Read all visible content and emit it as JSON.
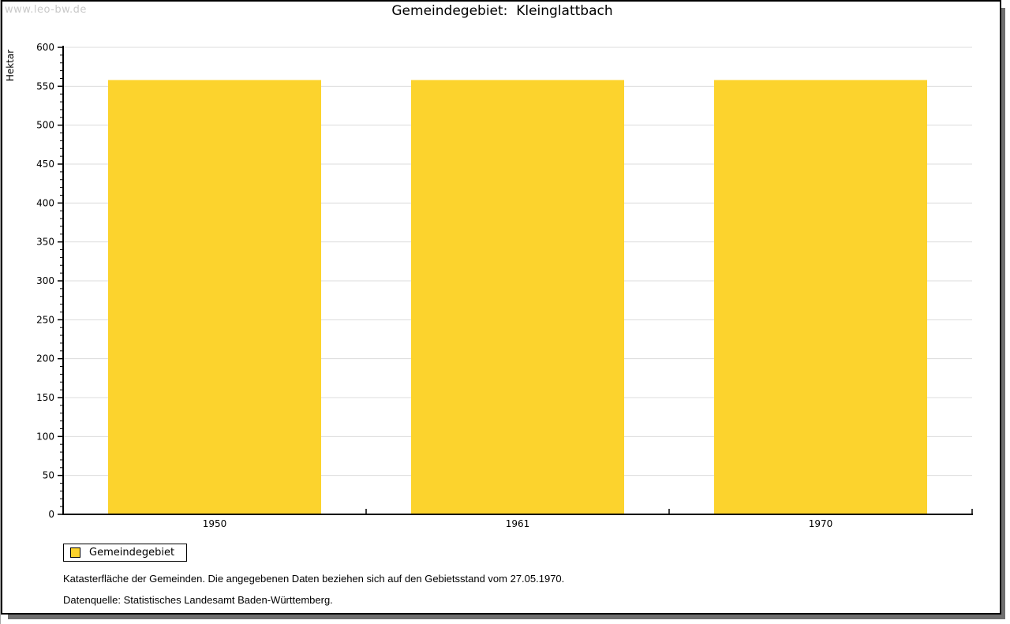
{
  "watermark": "www.leo-bw.de",
  "header": {
    "title": "Gemeindegebiet:  Kleinglattbach"
  },
  "chart_data": {
    "type": "bar",
    "title": "Gemeindegebiet: Kleinglattbach",
    "categories": [
      "1950",
      "1961",
      "1970"
    ],
    "series": [
      {
        "name": "Gemeindegebiet",
        "values": [
          558,
          558,
          558
        ],
        "color": "#FCD32D"
      }
    ],
    "xlabel": "",
    "ylabel": "Hektar",
    "ylim": [
      0,
      600
    ],
    "ytick_major": 50,
    "ytick_minor": 10,
    "grid": true,
    "legend_position": "bottom-left"
  },
  "legend": {
    "items": [
      {
        "label": "Gemeindegebiet",
        "color": "#FCD32D"
      }
    ]
  },
  "footnotes": {
    "line1": "Katasterfläche der Gemeinden. Die angegebenen Daten beziehen sich auf den Gebietsstand vom 27.05.1970.",
    "line2": "Datenquelle: Statistisches Landesamt Baden-Württemberg."
  },
  "colors": {
    "bar": "#FCD32D",
    "grid": "#DCDCDC",
    "axis": "#000000",
    "text": "#000000",
    "watermark": "#C9C9C9",
    "frame_border": "#000000",
    "frame_shadow": "#6F6F6F"
  }
}
